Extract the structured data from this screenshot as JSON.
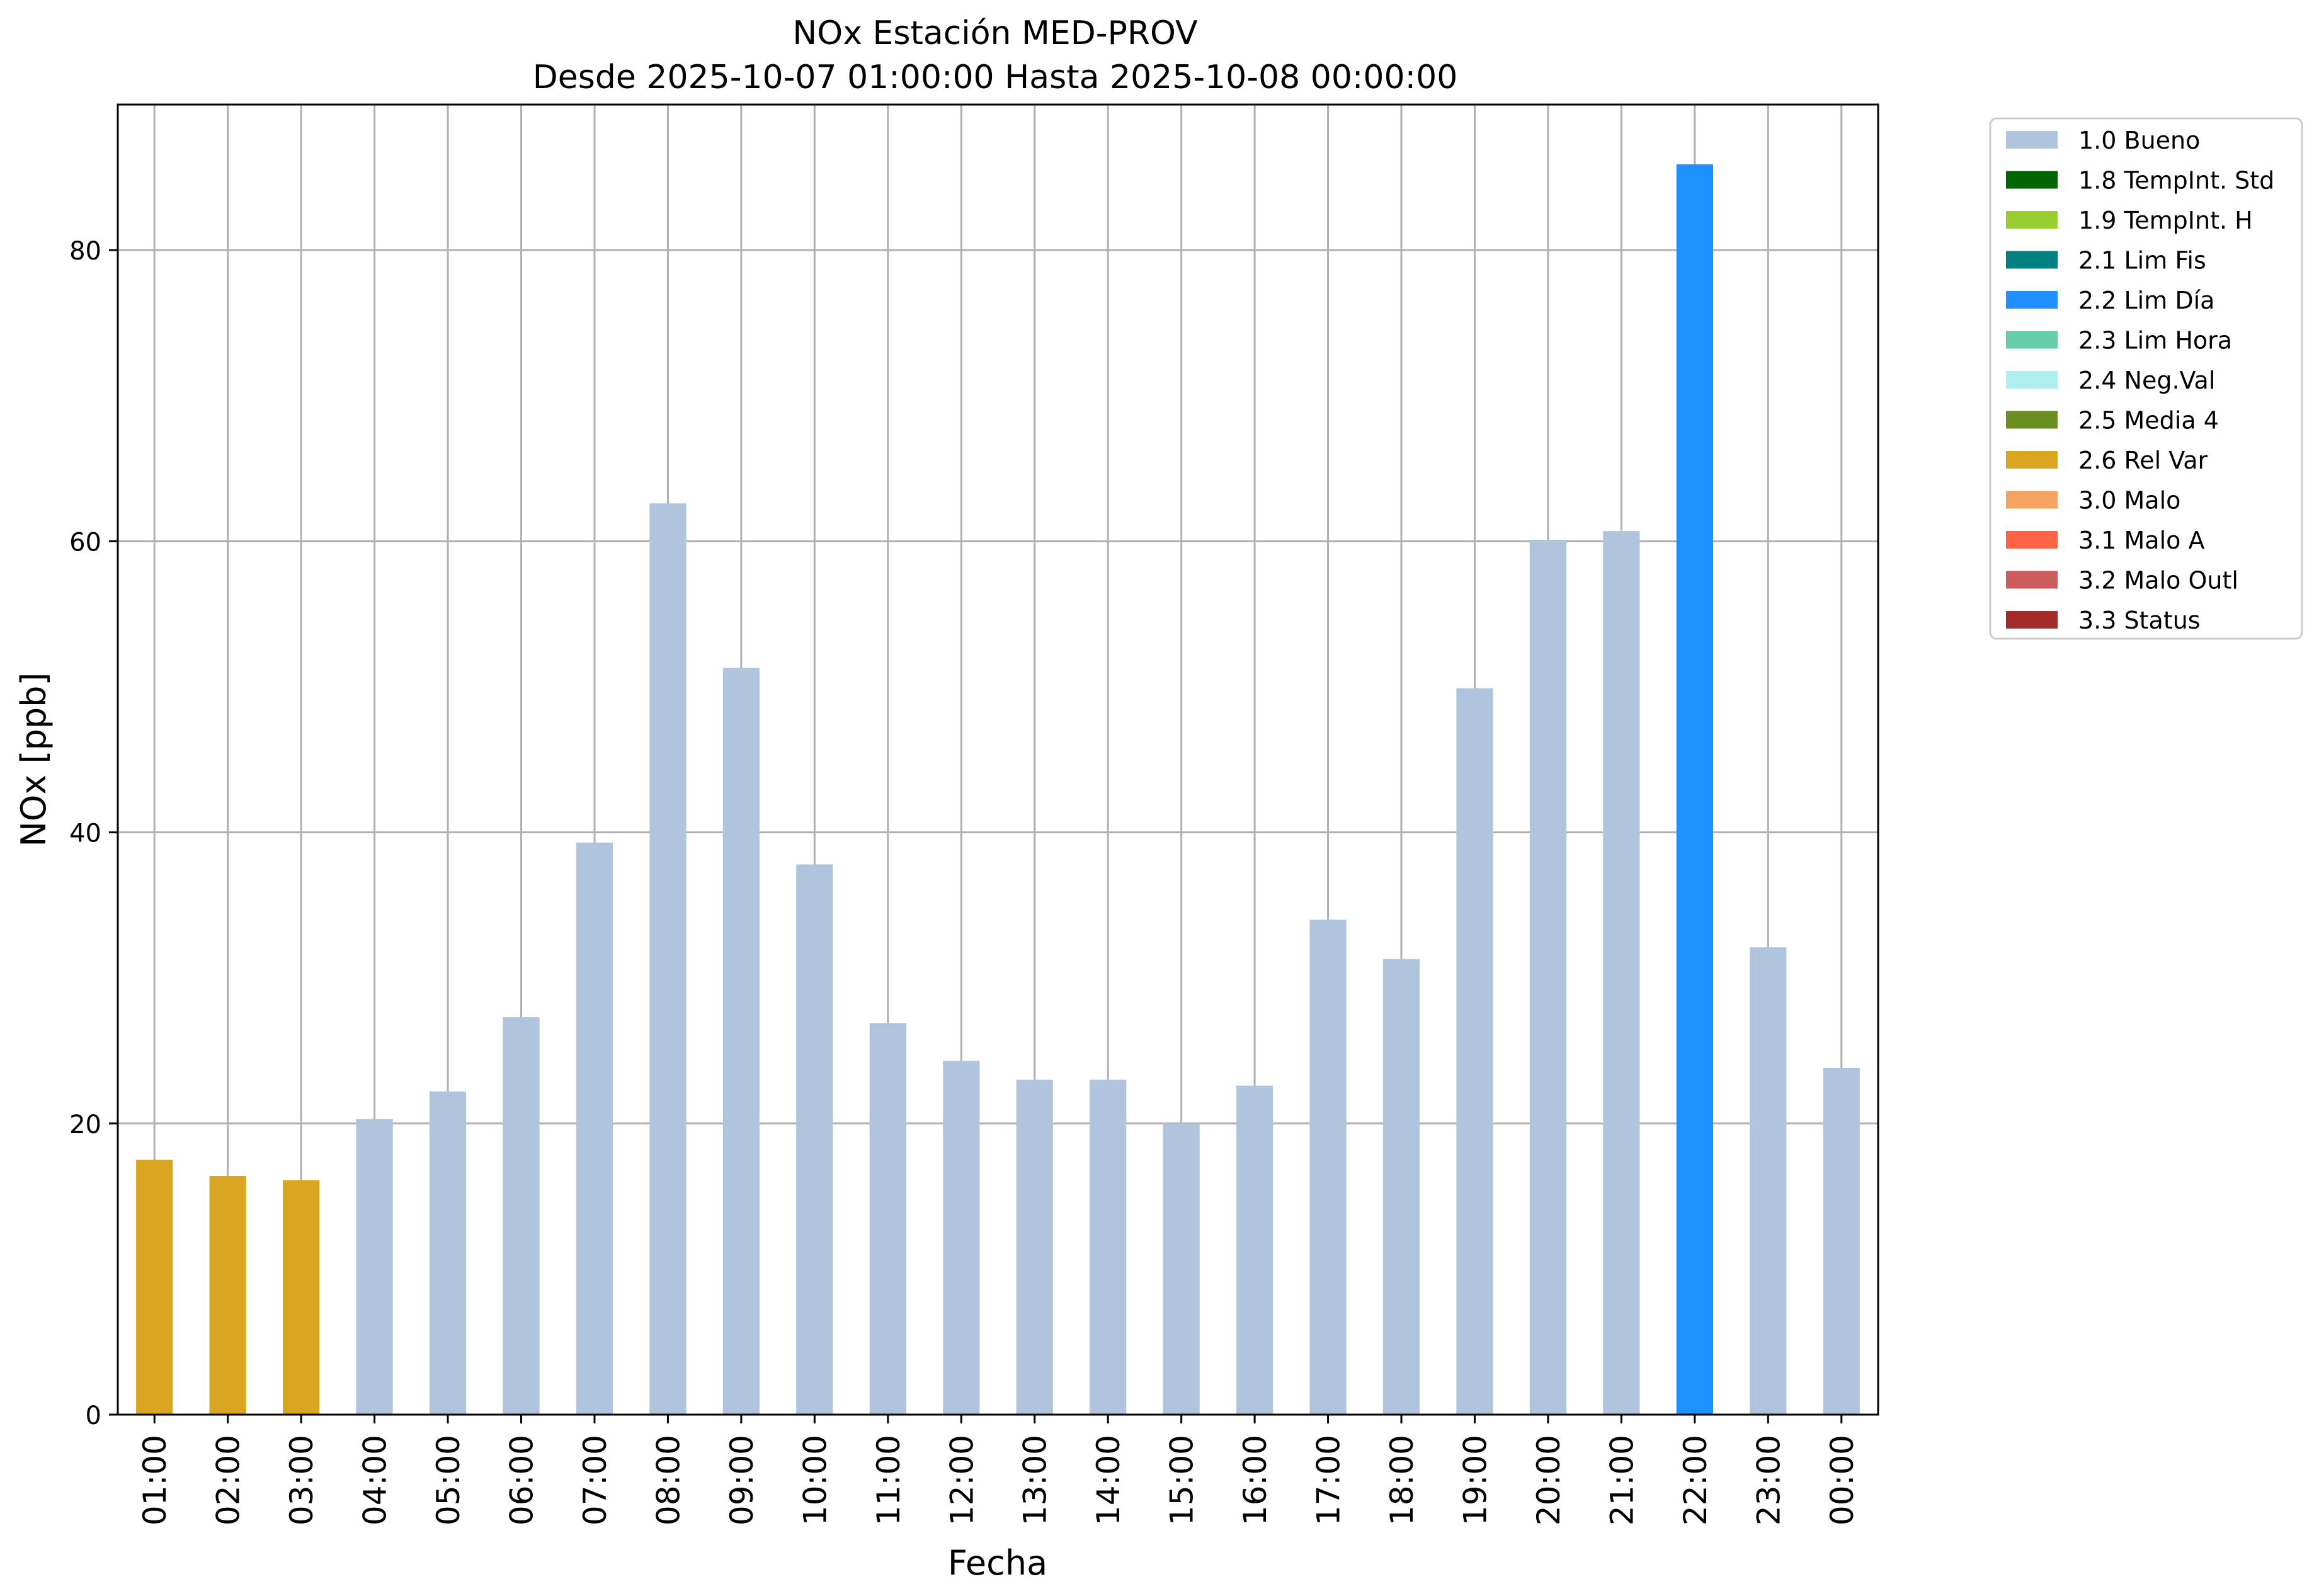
{
  "chart_data": {
    "type": "bar",
    "title": "NOx Estación MED-PROV",
    "subtitle": "Desde 2025-10-07 01:00:00 Hasta 2025-10-08 00:00:00",
    "xlabel": "Fecha",
    "ylabel": "NOx [ppb]",
    "ylim": [
      0,
      90
    ],
    "yticks": [
      0,
      20,
      40,
      60,
      80
    ],
    "grid": true,
    "legend_position": "outside-top-right",
    "categories": [
      "01:00",
      "02:00",
      "03:00",
      "04:00",
      "05:00",
      "06:00",
      "07:00",
      "08:00",
      "09:00",
      "10:00",
      "11:00",
      "12:00",
      "13:00",
      "14:00",
      "15:00",
      "16:00",
      "17:00",
      "18:00",
      "19:00",
      "20:00",
      "21:00",
      "22:00",
      "23:00",
      "00:00"
    ],
    "values": [
      17.5,
      16.4,
      16.1,
      20.3,
      22.2,
      27.3,
      39.3,
      62.6,
      51.3,
      37.8,
      26.9,
      24.3,
      23.0,
      23.0,
      20.0,
      22.6,
      34.0,
      31.3,
      49.9,
      60.1,
      60.7,
      85.9,
      32.1,
      23.8
    ],
    "flags": [
      "2.6 Rel Var",
      "2.6 Rel Var",
      "2.6 Rel Var",
      "1.0 Bueno",
      "1.0 Bueno",
      "1.0 Bueno",
      "1.0 Bueno",
      "1.0 Bueno",
      "1.0 Bueno",
      "1.0 Bueno",
      "1.0 Bueno",
      "1.0 Bueno",
      "1.0 Bueno",
      "1.0 Bueno",
      "1.0 Bueno",
      "1.0 Bueno",
      "1.0 Bueno",
      "1.0 Bueno",
      "1.0 Bueno",
      "1.0 Bueno",
      "1.0 Bueno",
      "2.2 Lim Día",
      "1.0 Bueno",
      "1.0 Bueno"
    ],
    "legend": [
      {
        "label": "1.0 Bueno",
        "color": "#b0c4de"
      },
      {
        "label": "1.8 TempInt. Std",
        "color": "#006400"
      },
      {
        "label": "1.9 TempInt. H",
        "color": "#9acd32"
      },
      {
        "label": "2.1 Lim Fis",
        "color": "#008080"
      },
      {
        "label": "2.2 Lim Día",
        "color": "#1e90ff"
      },
      {
        "label": "2.3 Lim Hora",
        "color": "#66cdaa"
      },
      {
        "label": "2.4 Neg.Val",
        "color": "#afeeee"
      },
      {
        "label": "2.5 Media 4",
        "color": "#6b8e23"
      },
      {
        "label": "2.6 Rel Var",
        "color": "#daa520"
      },
      {
        "label": "3.0 Malo",
        "color": "#f4a460"
      },
      {
        "label": "3.1 Malo A",
        "color": "#ff6347"
      },
      {
        "label": "3.2 Malo Outl",
        "color": "#cd5c5c"
      },
      {
        "label": "3.3 Status",
        "color": "#a52a2a"
      }
    ]
  }
}
